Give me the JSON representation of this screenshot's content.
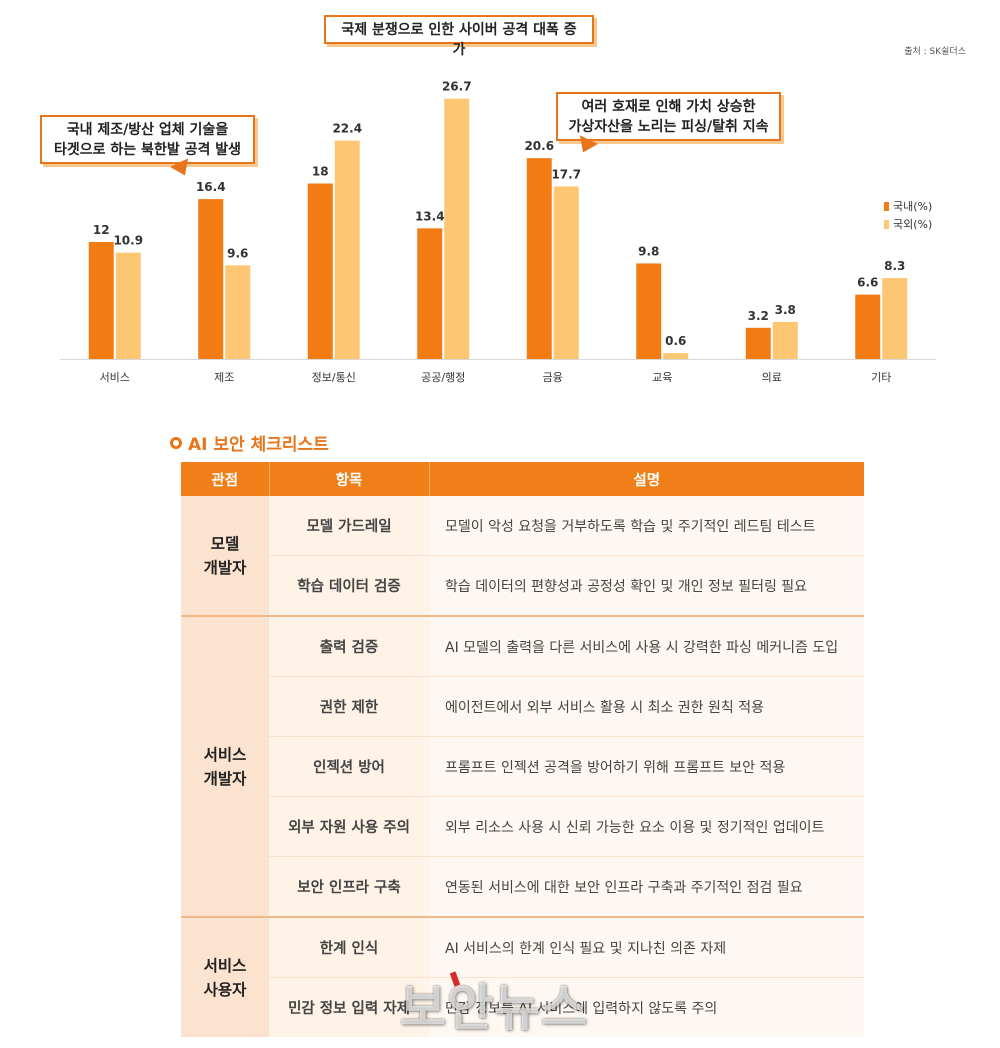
{
  "source": "출처 : SK쉴더스",
  "chart_data": {
    "type": "bar",
    "categories": [
      "서비스",
      "제조",
      "정보/통신",
      "공공/행정",
      "금융",
      "교육",
      "의료",
      "기타"
    ],
    "series": [
      {
        "name": "국내(%)",
        "values": [
          12,
          16.4,
          18,
          13.4,
          20.6,
          9.8,
          3.2,
          6.6
        ],
        "color": "#f27b13"
      },
      {
        "name": "국외(%)",
        "values": [
          10.9,
          9.6,
          22.4,
          26.7,
          17.7,
          0.6,
          3.8,
          8.3
        ],
        "color": "#fdc673"
      }
    ],
    "value_labels": [
      [
        "12",
        "16.4",
        "18",
        "13.4",
        "20.6",
        "9.8",
        "3.2",
        "6.6"
      ],
      [
        "10.9",
        "9.6",
        "22.4",
        "26.7",
        "17.7",
        "0.6",
        "3.8",
        "8.3"
      ]
    ],
    "ylim": [
      0,
      28
    ],
    "grid": false,
    "legend_position": "right",
    "annotations": [
      {
        "line1": "국내 제조/방산 업체 기술을",
        "line2": "타겟으로 하는 북한발 공격 발생"
      },
      {
        "line1": "국제 분쟁으로 인한 사이버 공격 대폭 증가"
      },
      {
        "line1": "여러 호재로 인해 가치 상승한",
        "line2": "가상자산을 노리는 피싱/탈취 지속"
      }
    ]
  },
  "checklist": {
    "title": "AI 보안 체크리스트",
    "headers": {
      "group": "관점",
      "item": "항목",
      "desc": "설명"
    },
    "groups": [
      {
        "line1": "모델",
        "line2": "개발자",
        "rows": [
          {
            "item": "모델 가드레일",
            "desc": "모델이 악성 요청을 거부하도록 학습 및 주기적인 레드팀 테스트"
          },
          {
            "item": "학습 데이터 검증",
            "desc": "학습 데이터의 편향성과 공정성 확인 및 개인 정보 필터링 필요"
          }
        ]
      },
      {
        "line1": "서비스",
        "line2": "개발자",
        "rows": [
          {
            "item": "출력 검증",
            "desc": "AI 모델의 출력을 다른 서비스에 사용 시 강력한 파싱 메커니즘 도입"
          },
          {
            "item": "권한 제한",
            "desc": "에이전트에서 외부 서비스 활용 시 최소 권한 원칙 적용"
          },
          {
            "item": "인젝션 방어",
            "desc": "프롬프트 인젝션 공격을 방어하기 위해 프롬프트 보안 적용"
          },
          {
            "item": "외부 자원 사용 주의",
            "desc": "외부 리소스 사용 시 신뢰 가능한 요소 이용 및 정기적인 업데이트"
          },
          {
            "item": "보안 인프라 구축",
            "desc": "연동된 서비스에 대한 보안 인프라 구축과 주기적인 점검 필요"
          }
        ]
      },
      {
        "line1": "서비스",
        "line2": "사용자",
        "rows": [
          {
            "item": "한계 인식",
            "desc": "AI 서비스의 한계 인식 필요 및 지나친 의존 자제"
          },
          {
            "item": "민감 정보 입력 자제",
            "desc": "민감 정보를 AI 서비스에 입력하지 않도록 주의"
          }
        ]
      }
    ]
  },
  "watermark": "보안뉴스"
}
